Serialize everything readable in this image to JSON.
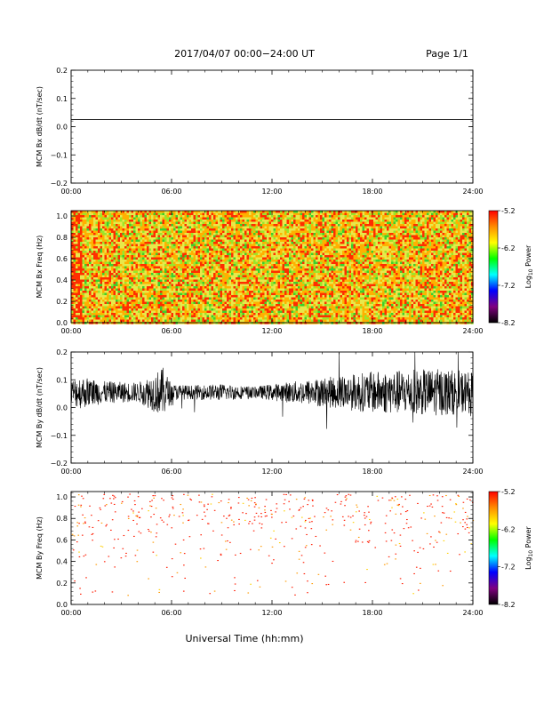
{
  "header": {
    "title": "2017/04/07  00:00−24:00 UT",
    "page": "Page 1/1"
  },
  "footer": {
    "xlabel": "Universal Time (hh:mm)"
  },
  "chart_data": [
    {
      "type": "line",
      "ylabel": "MCM Bx dB/dt (nT/sec)",
      "x_range_hours": [
        0,
        24
      ],
      "x_ticks": [
        "00:00",
        "06:00",
        "12:00",
        "18:00",
        "24:00"
      ],
      "ylim": [
        -0.2,
        0.2
      ],
      "y_ticks": [
        "−0.2",
        "−0.1",
        "0.0",
        "0.1",
        "0.2"
      ],
      "y_tick_values": [
        -0.2,
        -0.1,
        0.0,
        0.1,
        0.2
      ],
      "series_level": 0.025,
      "description": "flat line"
    },
    {
      "type": "heatmap",
      "ylabel": "MCM Bx Freq (Hz)",
      "x_range_hours": [
        0,
        24
      ],
      "x_ticks": [
        "00:00",
        "06:00",
        "12:00",
        "18:00",
        "24:00"
      ],
      "ylim": [
        0.0,
        1.05
      ],
      "y_ticks": [
        "0.0",
        "0.2",
        "0.4",
        "0.6",
        "0.8",
        "1.0"
      ],
      "y_tick_values": [
        0.0,
        0.2,
        0.4,
        0.6,
        0.8,
        1.0
      ],
      "colorbar": {
        "label": "Log10 Power",
        "label_main": "Log",
        "label_sub": "10",
        "label_rest": " Power",
        "ticks": [
          "-5.2",
          "-6.2",
          "-7.2",
          "-8.2"
        ],
        "tick_values": [
          -5.2,
          -6.2,
          -7.2,
          -8.2
        ],
        "range": [
          -8.2,
          -5.2
        ]
      },
      "dominant_colors": [
        "#ff2d00",
        "#ffb000",
        "#e8e84a",
        "#9ae62a",
        "#3ccf2e"
      ]
    },
    {
      "type": "line",
      "ylabel": "MCM By dB/dt (nT/sec)",
      "x_range_hours": [
        0,
        24
      ],
      "x_ticks": [
        "00:00",
        "06:00",
        "12:00",
        "18:00",
        "24:00"
      ],
      "ylim": [
        -0.2,
        0.2
      ],
      "y_ticks": [
        "−0.2",
        "−0.1",
        "0.0",
        "0.1",
        "0.2"
      ],
      "y_tick_values": [
        -0.2,
        -0.1,
        0.0,
        0.1,
        0.2
      ],
      "baseline": 0.055,
      "noise_envelope": [
        [
          0,
          0.045
        ],
        [
          0.5,
          0.06
        ],
        [
          2,
          0.04
        ],
        [
          4,
          0.035
        ],
        [
          5.5,
          0.09
        ],
        [
          6,
          0.03
        ],
        [
          7,
          0.025
        ],
        [
          9,
          0.03
        ],
        [
          11,
          0.02
        ],
        [
          12,
          0.03
        ],
        [
          14,
          0.045
        ],
        [
          16,
          0.06
        ],
        [
          18,
          0.075
        ],
        [
          20,
          0.08
        ],
        [
          22,
          0.085
        ],
        [
          24,
          0.075
        ]
      ]
    },
    {
      "type": "heatmap",
      "ylabel": "MCM By Freq (Hz)",
      "x_range_hours": [
        0,
        24
      ],
      "x_ticks": [
        "00:00",
        "06:00",
        "12:00",
        "18:00",
        "24:00"
      ],
      "ylim": [
        0.0,
        1.05
      ],
      "y_ticks": [
        "0.0",
        "0.2",
        "0.4",
        "0.6",
        "0.8",
        "1.0"
      ],
      "y_tick_values": [
        0.0,
        0.2,
        0.4,
        0.6,
        0.8,
        1.0
      ],
      "colorbar": {
        "label": "Log10 Power",
        "label_main": "Log",
        "label_sub": "10",
        "label_rest": " Power",
        "ticks": [
          "-5.2",
          "-6.2",
          "-7.2",
          "-8.2"
        ],
        "tick_values": [
          -5.2,
          -6.2,
          -7.2,
          -8.2
        ],
        "range": [
          -8.2,
          -5.2
        ]
      },
      "description": "sparse red points, mostly above 0.6 Hz"
    }
  ],
  "colors": {
    "colorbar_stops": [
      "#ff0000",
      "#ff8c00",
      "#ffff00",
      "#00ff00",
      "#00ffff",
      "#0000ff",
      "#800080",
      "#000000"
    ]
  }
}
